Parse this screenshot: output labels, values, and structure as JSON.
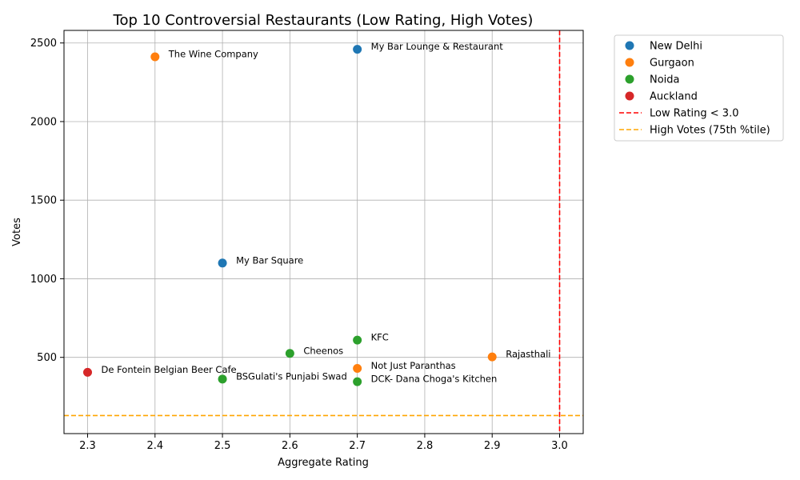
{
  "chart_data": {
    "type": "scatter",
    "title": "Top 10 Controversial Restaurants (Low Rating, High Votes)",
    "xlabel": "Aggregate Rating",
    "ylabel": "Votes",
    "xlim": [
      2.265,
      3.035
    ],
    "ylim": [
      15,
      2580
    ],
    "x_ticks": [
      2.3,
      2.4,
      2.5,
      2.6,
      2.7,
      2.8,
      2.9,
      3.0
    ],
    "x_tick_labels": [
      "2.3",
      "2.4",
      "2.5",
      "2.6",
      "2.7",
      "2.8",
      "2.9",
      "3.0"
    ],
    "y_ticks": [
      500,
      1000,
      1500,
      2000,
      2500
    ],
    "y_tick_labels": [
      "500",
      "1000",
      "1500",
      "2000",
      "2500"
    ],
    "grid": true,
    "legend_position": "outside-top-right",
    "series": [
      {
        "name": "New Delhi",
        "color": "#1f77b4"
      },
      {
        "name": "Gurgaon",
        "color": "#ff7f0e"
      },
      {
        "name": "Noida",
        "color": "#2ca02c"
      },
      {
        "name": "Auckland",
        "color": "#d62728"
      }
    ],
    "points": [
      {
        "label": "My Bar Lounge & Restaurant",
        "x": 2.7,
        "y": 2460,
        "series": 0
      },
      {
        "label": "The Wine Company",
        "x": 2.4,
        "y": 2412,
        "series": 1
      },
      {
        "label": "My Bar Square",
        "x": 2.5,
        "y": 1100,
        "series": 0
      },
      {
        "label": "KFC",
        "x": 2.7,
        "y": 610,
        "series": 2
      },
      {
        "label": "Cheenos",
        "x": 2.6,
        "y": 525,
        "series": 2
      },
      {
        "label": "Rajasthali",
        "x": 2.9,
        "y": 503,
        "series": 1
      },
      {
        "label": "Not Just Paranthas",
        "x": 2.7,
        "y": 430,
        "series": 1
      },
      {
        "label": "De Fontein Belgian Beer Cafe",
        "x": 2.3,
        "y": 405,
        "series": 3
      },
      {
        "label": "BSGulati's Punjabi Swad",
        "x": 2.5,
        "y": 362,
        "series": 2
      },
      {
        "label": "DCK- Dana Choga's Kitchen",
        "x": 2.7,
        "y": 345,
        "series": 2
      }
    ],
    "reference_lines": [
      {
        "orientation": "vertical",
        "value": 3.0,
        "label": "Low Rating < 3.0",
        "color": "#ff0000",
        "style": "dashed"
      },
      {
        "orientation": "horizontal",
        "value": 130,
        "label": "High Votes (75th %tile)",
        "color": "#ffa500",
        "style": "dashed"
      }
    ]
  }
}
